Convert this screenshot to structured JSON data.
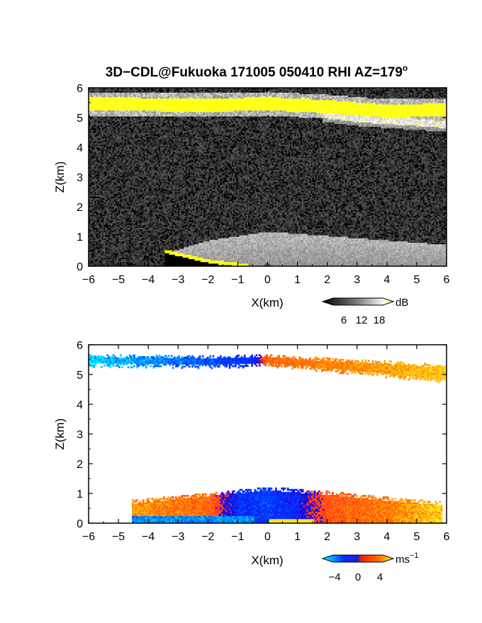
{
  "figure_title": "3D−CDL@Fukuoka 171005 050410 RHI AZ=179",
  "title_degree": "o",
  "chart_data": [
    {
      "type": "heatmap",
      "panel": "top",
      "quantity": "Intensity",
      "xlabel": "X(km)",
      "ylabel": "Z(km)",
      "xlim": [
        -6,
        6
      ],
      "ylim": [
        0,
        6
      ],
      "xticks": [
        "−6",
        "−5",
        "−4",
        "−3",
        "−2",
        "−1",
        "0",
        "1",
        "2",
        "3",
        "4",
        "5",
        "6"
      ],
      "yticks": [
        "0",
        "1",
        "2",
        "3",
        "4",
        "5",
        "6"
      ],
      "colorbar": {
        "unit": "dB",
        "ticks": [
          "6",
          "12",
          "18"
        ],
        "range": [
          0,
          20
        ],
        "colors": [
          "#000000",
          "#ffffff",
          "#ffff00"
        ]
      },
      "features": [
        {
          "name": "cloud layer",
          "x_range": [
            -6,
            6
          ],
          "z_center_at_x": [
            [
              -6,
              5.45
            ],
            [
              -2,
              5.4
            ],
            [
              0,
              5.45
            ],
            [
              2,
              5.35
            ],
            [
              4,
              5.2
            ],
            [
              6,
              5.25
            ]
          ],
          "intensity_dB": 18
        },
        {
          "name": "secondary cloud band",
          "x_range": [
            1.8,
            6
          ],
          "z_center_at_x": [
            [
              1.8,
              5.1
            ],
            [
              3,
              4.95
            ],
            [
              4.5,
              4.85
            ],
            [
              6,
              4.75
            ]
          ],
          "intensity_dB": 12
        },
        {
          "name": "boundary layer",
          "x_range": [
            -3.5,
            6
          ],
          "z_top_at_x": [
            [
              -3.5,
              0.4
            ],
            [
              -2,
              0.85
            ],
            [
              0,
              1.15
            ],
            [
              2,
              1.0
            ],
            [
              4,
              0.85
            ],
            [
              6,
              0.7
            ]
          ],
          "intensity_dB": 12
        },
        {
          "name": "ground return",
          "x_range": [
            -3.5,
            -0.7
          ],
          "z_at_x": [
            [
              -3.5,
              0.5
            ],
            [
              -2,
              0.15
            ],
            [
              -0.7,
              0.0
            ]
          ],
          "intensity_dB": 18
        }
      ]
    },
    {
      "type": "heatmap",
      "panel": "bottom",
      "quantity": "Doppler velocity",
      "xlabel": "X(km)",
      "ylabel": "Z(km)",
      "xlim": [
        -6,
        6
      ],
      "ylim": [
        0,
        6
      ],
      "xticks": [
        "−6",
        "−5",
        "−4",
        "−3",
        "−2",
        "−1",
        "0",
        "1",
        "2",
        "3",
        "4",
        "5",
        "6"
      ],
      "yticks": [
        "0",
        "1",
        "2",
        "3",
        "4",
        "5",
        "6"
      ],
      "colorbar": {
        "unit": "ms",
        "unit_exponent": "−1",
        "ticks": [
          "−4",
          "0",
          "4"
        ],
        "range": [
          -5,
          5
        ],
        "colors": [
          "#00ffff",
          "#0000ff",
          "#ff0000",
          "#ffff00"
        ]
      },
      "features": [
        {
          "name": "cloud layer velocity",
          "x_range": [
            -6,
            6
          ],
          "z_center_at_x": [
            [
              -6,
              5.45
            ],
            [
              -2,
              5.4
            ],
            [
              0,
              5.45
            ],
            [
              2,
              5.3
            ],
            [
              4,
              5.15
            ],
            [
              6,
              5.0
            ]
          ],
          "velocity_at_x": [
            [
              -6,
              -4.5
            ],
            [
              -2,
              -3
            ],
            [
              -0.5,
              -2
            ],
            [
              0,
              2
            ],
            [
              3,
              3
            ],
            [
              6,
              4
            ]
          ]
        },
        {
          "name": "boundary layer velocity",
          "x_range": [
            -4.6,
            5.8
          ],
          "z_top_at_x": [
            [
              -4.6,
              0.75
            ],
            [
              -2,
              1.0
            ],
            [
              0,
              1.2
            ],
            [
              2,
              1.05
            ],
            [
              4,
              0.85
            ],
            [
              5.8,
              0.7
            ]
          ],
          "velocity_at_x": [
            [
              -4.5,
              3
            ],
            [
              -2,
              2
            ],
            [
              -1,
              -2
            ],
            [
              0,
              -2.5
            ],
            [
              1,
              -1.5
            ],
            [
              2,
              1.5
            ],
            [
              4,
              2.5
            ],
            [
              5.5,
              4
            ]
          ]
        }
      ]
    }
  ]
}
